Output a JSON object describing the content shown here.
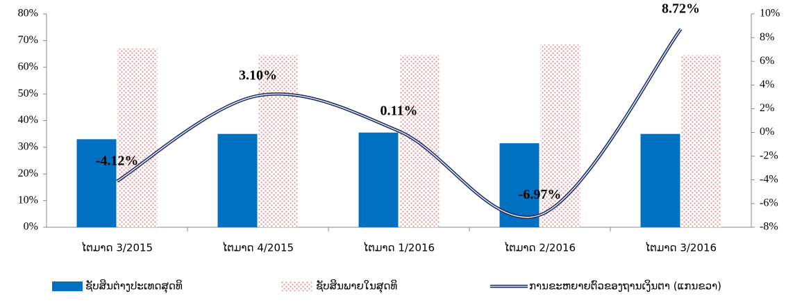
{
  "chart_data": {
    "type": "bar_line",
    "categories": [
      "ໄຕມາດ 3/2015",
      "ໄຕມາດ 4/2015",
      "ໄຕມາດ 1/2016",
      "ໄຕມາດ 2/2016",
      "ໄຕມາດ 3/2016"
    ],
    "series": [
      {
        "name": "ຊັບສິນຕ່າງປະເທດສຸດທິ",
        "color": "#0070c0",
        "values": [
          33,
          35,
          35.5,
          31.5,
          35
        ]
      },
      {
        "name": "ຊັບສິນພາຍໃນສຸດທິ",
        "color": "#f4a6ae",
        "values": [
          67,
          64.5,
          64.5,
          68.5,
          64.5
        ]
      },
      {
        "name": "ການຂະຫຍາຍຕົວຂອງຖານເງິນຕາ (ແກນຂວາ)",
        "color": "#1f2d6b",
        "axis": "y2",
        "values": [
          -4.12,
          3.1,
          0.11,
          -6.97,
          8.72
        ],
        "value_labels": [
          "-4.12%",
          "3.10%",
          "0.11%",
          "-6.97%",
          "8.72%"
        ]
      }
    ],
    "ylim": [
      0,
      80
    ],
    "yticks": [
      {
        "value": 0,
        "label": "0%"
      },
      {
        "value": 10,
        "label": "10%"
      },
      {
        "value": 20,
        "label": "20%"
      },
      {
        "value": 30,
        "label": "30%"
      },
      {
        "value": 40,
        "label": "40%"
      },
      {
        "value": 50,
        "label": "50%"
      },
      {
        "value": 60,
        "label": "60%"
      },
      {
        "value": 70,
        "label": "70%"
      },
      {
        "value": 80,
        "label": "80%"
      }
    ],
    "y2lim": [
      -8,
      10
    ],
    "y2ticks": [
      {
        "value": -8,
        "label": "-8%"
      },
      {
        "value": -6,
        "label": "-6%"
      },
      {
        "value": -4,
        "label": "-4%"
      },
      {
        "value": -2,
        "label": "-2%"
      },
      {
        "value": 0,
        "label": "0%"
      },
      {
        "value": 2,
        "label": "2%"
      },
      {
        "value": 4,
        "label": "4%"
      },
      {
        "value": 6,
        "label": "6%"
      },
      {
        "value": 8,
        "label": "8%"
      },
      {
        "value": 10,
        "label": "10%"
      }
    ],
    "legend": "bottom"
  }
}
